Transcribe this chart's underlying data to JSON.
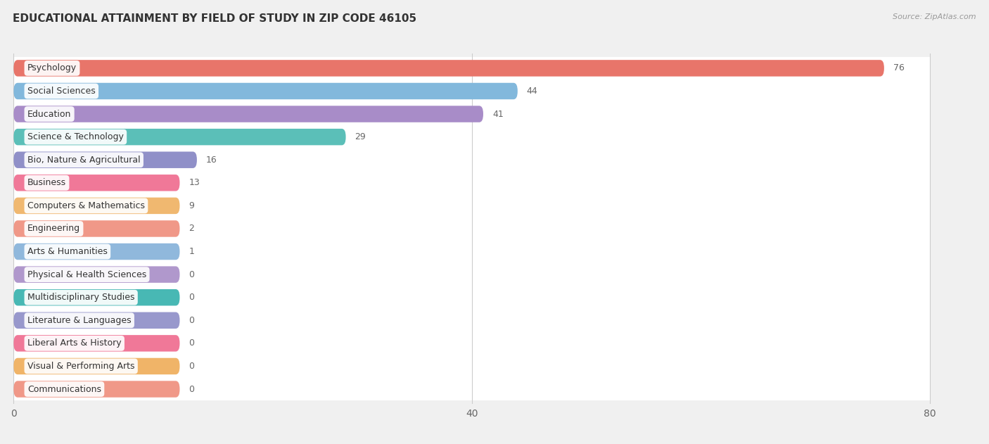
{
  "title": "EDUCATIONAL ATTAINMENT BY FIELD OF STUDY IN ZIP CODE 46105",
  "source": "Source: ZipAtlas.com",
  "categories": [
    "Psychology",
    "Social Sciences",
    "Education",
    "Science & Technology",
    "Bio, Nature & Agricultural",
    "Business",
    "Computers & Mathematics",
    "Engineering",
    "Arts & Humanities",
    "Physical & Health Sciences",
    "Multidisciplinary Studies",
    "Literature & Languages",
    "Liberal Arts & History",
    "Visual & Performing Arts",
    "Communications"
  ],
  "values": [
    76,
    44,
    41,
    29,
    16,
    13,
    9,
    2,
    1,
    0,
    0,
    0,
    0,
    0,
    0
  ],
  "bar_colors": [
    "#E8756A",
    "#82B8DC",
    "#A88CC8",
    "#5BBFB8",
    "#9090C8",
    "#F07898",
    "#F0B870",
    "#F09888",
    "#90B8DC",
    "#B098CC",
    "#48B8B4",
    "#9898CC",
    "#F07898",
    "#F0B468",
    "#F09888"
  ],
  "xlim_max": 80,
  "xticks": [
    0,
    40,
    80
  ],
  "background_color": "#f0f0f0",
  "row_bg_color": "#ffffff",
  "title_fontsize": 11,
  "bar_height": 0.72,
  "min_bar_display": 14.5
}
